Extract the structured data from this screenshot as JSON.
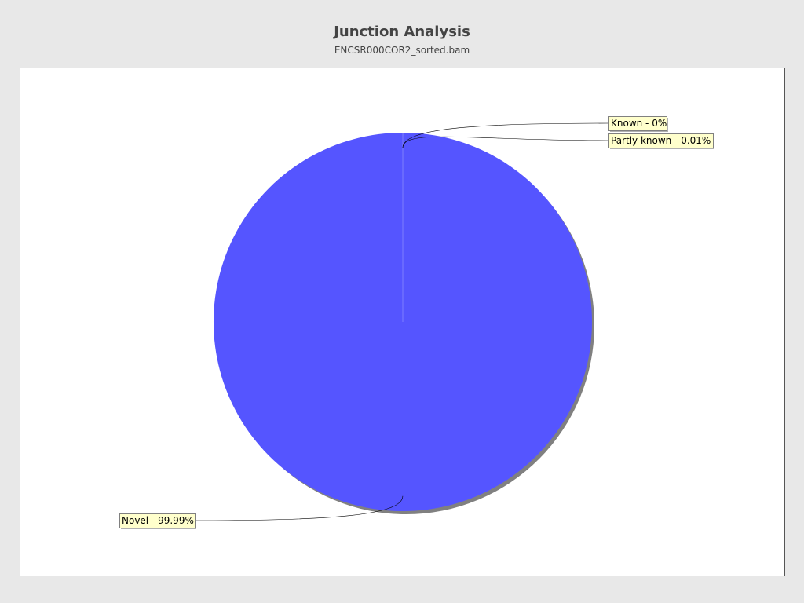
{
  "chart_data": {
    "type": "pie",
    "title": "Junction Analysis",
    "subtitle": "ENCSR000COR2_sorted.bam",
    "slices": [
      {
        "label": "Known",
        "percent_text": "0%",
        "value": 0.0,
        "color": "#ff5555"
      },
      {
        "label": "Partly known",
        "percent_text": "0.01%",
        "value": 0.01,
        "color": "#55ff55"
      },
      {
        "label": "Novel",
        "percent_text": "99.99%",
        "value": 99.99,
        "color": "#5555ff"
      }
    ],
    "legend": "none"
  },
  "colors": {
    "background": "#e8e8e8",
    "plot_background": "#ffffff",
    "label_background": "#ffffcc",
    "shadow": "#808080"
  }
}
